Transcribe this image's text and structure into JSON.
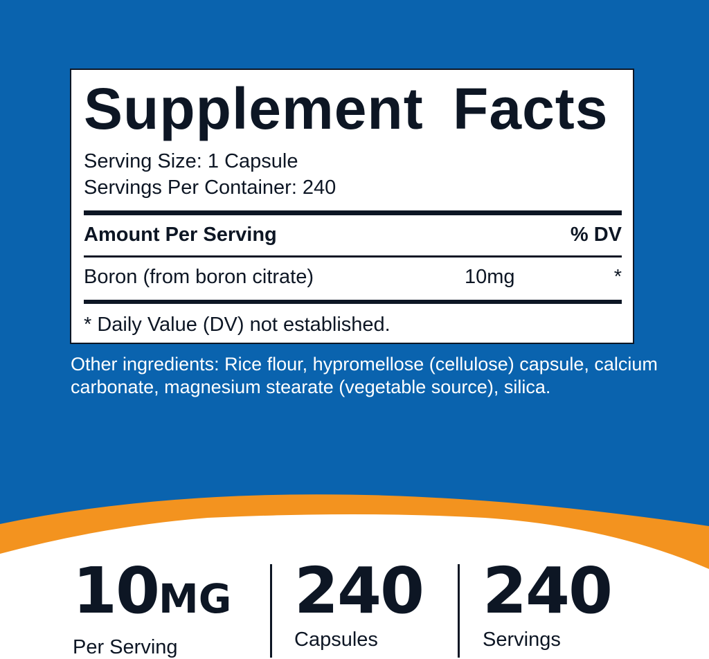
{
  "colors": {
    "background_blue": "#0a63ae",
    "accent_orange": "#f3931f",
    "text_dark": "#0d1624"
  },
  "facts": {
    "title": "Supplement Facts",
    "serving_size": "Serving Size: 1 Capsule",
    "servings_per_container": "Servings Per Container: 240",
    "amount_header": "Amount Per Serving",
    "dv_header": "% DV",
    "rows": [
      {
        "name": "Boron (from boron citrate)",
        "amount": "10mg",
        "dv": "*"
      }
    ],
    "footnote": "* Daily Value (DV) not established."
  },
  "other_ingredients": "Other ingredients: Rice flour, hypromellose (cellulose) capsule, calcium carbonate, magnesium stearate (vegetable source), silica.",
  "stats": [
    {
      "value": "10",
      "unit": "MG",
      "label": "Per Serving"
    },
    {
      "value": "240",
      "label": "Capsules"
    },
    {
      "value": "240",
      "label": "Servings"
    }
  ]
}
